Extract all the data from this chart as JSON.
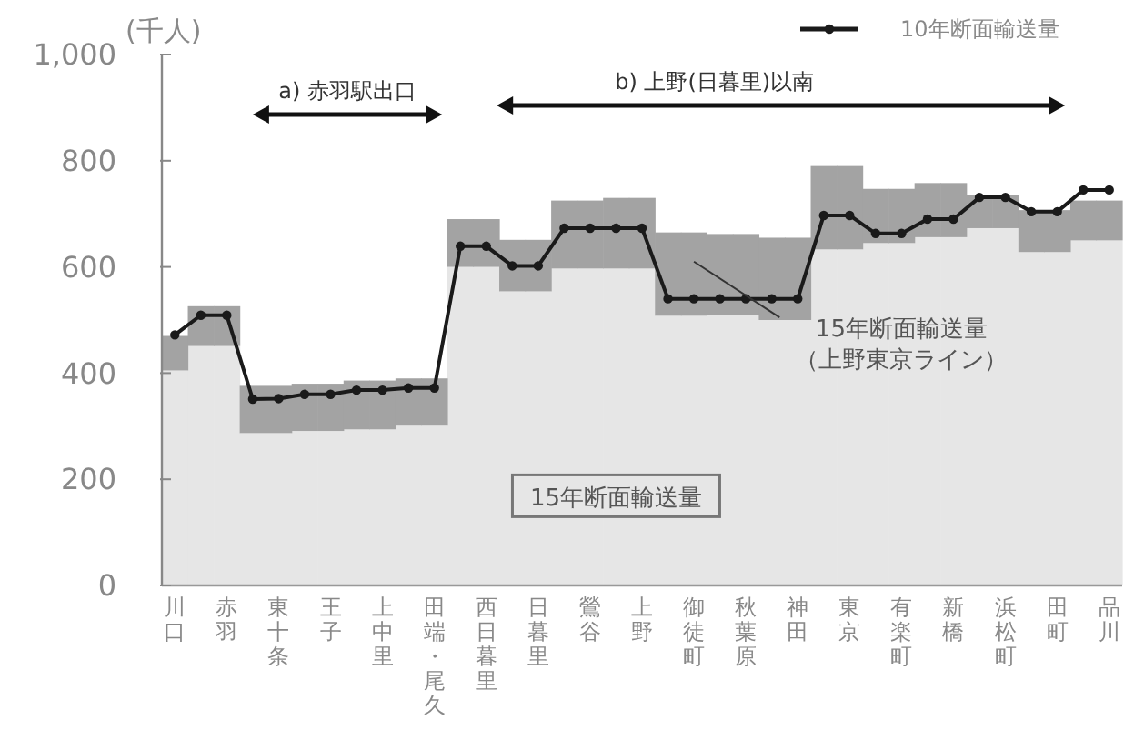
{
  "chart_data": {
    "type": "bar",
    "stacked": true,
    "ylabel": "(千人)",
    "ylim": [
      0,
      1000
    ],
    "yticks": [
      0,
      200,
      400,
      600,
      800,
      {
        "value": 1000,
        "label": "1,000"
      }
    ],
    "legend": "top right",
    "marker": "circle",
    "categories": [
      "川口",
      null,
      "赤羽",
      null,
      "東十条",
      null,
      "王子",
      null,
      "上中里",
      null,
      "田端・尾久",
      null,
      "西日暮里",
      null,
      "日暮里",
      null,
      "鶯谷",
      null,
      "上野",
      null,
      "御徒町",
      null,
      "秋葉原",
      null,
      "神田",
      null,
      "東京",
      null,
      "有楽町",
      null,
      "新橋",
      null,
      "浜松町",
      null,
      "田町",
      null,
      "品川"
    ],
    "series": [
      {
        "name": "15年断面輸送量",
        "color": "#e6e6e6",
        "values": [
          405,
          451,
          451,
          287,
          287,
          291,
          291,
          294,
          294,
          301,
          301,
          600,
          600,
          554,
          554,
          597,
          597,
          597,
          597,
          508,
          508,
          510,
          510,
          500,
          500,
          633,
          633,
          645,
          645,
          656,
          656,
          673,
          673,
          628,
          628,
          650,
          650
        ]
      },
      {
        "name": "15年断面輸送量（上野東京ライン）",
        "color": "#a3a3a3",
        "values": [
          65,
          75,
          75,
          89,
          89,
          89,
          89,
          92,
          92,
          89,
          89,
          90,
          90,
          97,
          97,
          128,
          128,
          133,
          133,
          157,
          157,
          152,
          152,
          155,
          155,
          157,
          157,
          102,
          102,
          102,
          102,
          63,
          63,
          79,
          79,
          75,
          75
        ]
      },
      {
        "name": "10年断面輸送量",
        "type": "line",
        "color": "#1a1a1a",
        "values": [
          472,
          509,
          509,
          351,
          352,
          360,
          360,
          368,
          368,
          372,
          372,
          639,
          639,
          602,
          602,
          673,
          673,
          673,
          673,
          540,
          540,
          540,
          540,
          540,
          540,
          697,
          697,
          663,
          663,
          690,
          690,
          731,
          731,
          704,
          704,
          745,
          745
        ]
      }
    ],
    "annotations": [
      "a) 赤羽駅出口",
      "b) 上野(日暮里)以南"
    ]
  }
}
